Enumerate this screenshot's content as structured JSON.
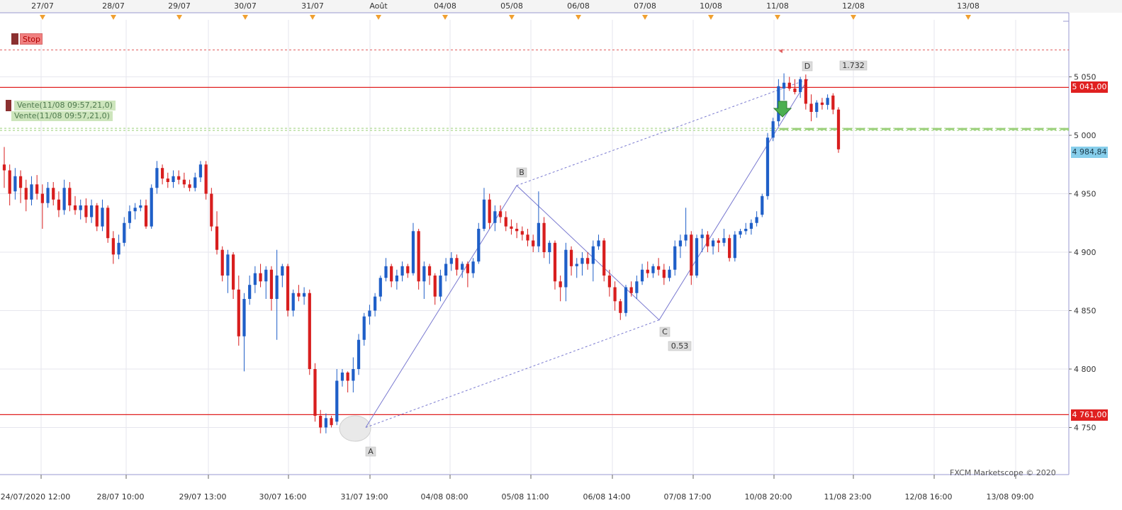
{
  "chart_data": {
    "type": "candlestick",
    "title": "",
    "watermark": "FXCM Marketscope © 2020",
    "top_date_labels": [
      "27/07",
      "28/07",
      "29/07",
      "30/07",
      "31/07",
      "Août",
      "04/08",
      "05/08",
      "06/08",
      "07/08",
      "10/08",
      "11/08",
      "12/08",
      "13/08"
    ],
    "bottom_time_labels": [
      "24/07/2020 12:00",
      "28/07 10:00",
      "29/07 13:00",
      "30/07 16:00",
      "31/07 19:00",
      "04/08 08:00",
      "05/08 11:00",
      "06/08 14:00",
      "07/08 17:00",
      "10/08 20:00",
      "11/08 23:00",
      "12/08 16:00",
      "13/08 09:00"
    ],
    "y_axis": {
      "ticks": [
        "4 750",
        "4 800",
        "4 850",
        "4 900",
        "4 950",
        "5 000",
        "5 050"
      ],
      "range": [
        4700,
        5100
      ]
    },
    "levels": {
      "resistance": {
        "value": 5041.0,
        "label": "5 041,00",
        "color": "#e02020"
      },
      "support": {
        "value": 4761.0,
        "label": "4 761,00",
        "color": "#e02020"
      },
      "current_price": {
        "value": 4984.84,
        "label": "4 984,84",
        "color": "#87ceeb"
      },
      "stop": {
        "value": 5073,
        "label": "Stop",
        "color": "#e06060"
      },
      "entry": {
        "value": 5006,
        "color": "#9ad07a"
      }
    },
    "orders": [
      "Vente(11/08 09:57,21,0)",
      "Vente(11/08 09:57,21,0)"
    ],
    "pattern": {
      "points": [
        {
          "label": "A",
          "x": "31/07 15:00",
          "y": 4750
        },
        {
          "label": "B",
          "x": "05/08 10:00",
          "y": 4957
        },
        {
          "label": "C",
          "x": "07/08 11:00",
          "y": 4842
        },
        {
          "label": "D",
          "x": "11/08 10:00",
          "y": 5048
        }
      ],
      "ratios": [
        "0.53",
        "1.732"
      ]
    },
    "bullish_color": "#1f5fc8",
    "bearish_color": "#d81e1e",
    "candles": [
      {
        "o": 4975,
        "h": 4990,
        "l": 4955,
        "c": 4970
      },
      {
        "o": 4970,
        "h": 4975,
        "l": 4940,
        "c": 4950
      },
      {
        "o": 4952,
        "h": 4972,
        "l": 4945,
        "c": 4965
      },
      {
        "o": 4965,
        "h": 4970,
        "l": 4942,
        "c": 4955
      },
      {
        "o": 4955,
        "h": 4962,
        "l": 4935,
        "c": 4945
      },
      {
        "o": 4945,
        "h": 4965,
        "l": 4940,
        "c": 4958
      },
      {
        "o": 4958,
        "h": 4966,
        "l": 4945,
        "c": 4950
      },
      {
        "o": 4950,
        "h": 4958,
        "l": 4920,
        "c": 4942
      },
      {
        "o": 4942,
        "h": 4960,
        "l": 4938,
        "c": 4955
      },
      {
        "o": 4955,
        "h": 4960,
        "l": 4940,
        "c": 4945
      },
      {
        "o": 4945,
        "h": 4952,
        "l": 4930,
        "c": 4936
      },
      {
        "o": 4936,
        "h": 4962,
        "l": 4932,
        "c": 4955
      },
      {
        "o": 4955,
        "h": 4960,
        "l": 4935,
        "c": 4940
      },
      {
        "o": 4940,
        "h": 4948,
        "l": 4932,
        "c": 4936
      },
      {
        "o": 4936,
        "h": 4945,
        "l": 4928,
        "c": 4940
      },
      {
        "o": 4940,
        "h": 4946,
        "l": 4925,
        "c": 4930
      },
      {
        "o": 4930,
        "h": 4945,
        "l": 4925,
        "c": 4940
      },
      {
        "o": 4940,
        "h": 4942,
        "l": 4918,
        "c": 4922
      },
      {
        "o": 4922,
        "h": 4945,
        "l": 4918,
        "c": 4938
      },
      {
        "o": 4938,
        "h": 4940,
        "l": 4908,
        "c": 4912
      },
      {
        "o": 4912,
        "h": 4918,
        "l": 4890,
        "c": 4898
      },
      {
        "o": 4898,
        "h": 4915,
        "l": 4894,
        "c": 4908
      },
      {
        "o": 4908,
        "h": 4930,
        "l": 4905,
        "c": 4925
      },
      {
        "o": 4925,
        "h": 4940,
        "l": 4920,
        "c": 4935
      },
      {
        "o": 4935,
        "h": 4942,
        "l": 4928,
        "c": 4938
      },
      {
        "o": 4938,
        "h": 4945,
        "l": 4935,
        "c": 4940
      },
      {
        "o": 4940,
        "h": 4945,
        "l": 4920,
        "c": 4922
      },
      {
        "o": 4922,
        "h": 4958,
        "l": 4920,
        "c": 4955
      },
      {
        "o": 4955,
        "h": 4978,
        "l": 4950,
        "c": 4972
      },
      {
        "o": 4972,
        "h": 4975,
        "l": 4958,
        "c": 4963
      },
      {
        "o": 4963,
        "h": 4968,
        "l": 4955,
        "c": 4960
      },
      {
        "o": 4960,
        "h": 4970,
        "l": 4955,
        "c": 4965
      },
      {
        "o": 4965,
        "h": 4970,
        "l": 4958,
        "c": 4962
      },
      {
        "o": 4962,
        "h": 4968,
        "l": 4955,
        "c": 4958
      },
      {
        "o": 4958,
        "h": 4962,
        "l": 4952,
        "c": 4955
      },
      {
        "o": 4955,
        "h": 4968,
        "l": 4952,
        "c": 4964
      },
      {
        "o": 4964,
        "h": 4978,
        "l": 4960,
        "c": 4975
      },
      {
        "o": 4975,
        "h": 4978,
        "l": 4945,
        "c": 4950
      },
      {
        "o": 4950,
        "h": 4955,
        "l": 4918,
        "c": 4922
      },
      {
        "o": 4922,
        "h": 4935,
        "l": 4898,
        "c": 4902
      },
      {
        "o": 4902,
        "h": 4905,
        "l": 4875,
        "c": 4880
      },
      {
        "o": 4880,
        "h": 4902,
        "l": 4865,
        "c": 4898
      },
      {
        "o": 4898,
        "h": 4900,
        "l": 4860,
        "c": 4868
      },
      {
        "o": 4868,
        "h": 4880,
        "l": 4820,
        "c": 4828
      },
      {
        "o": 4828,
        "h": 4865,
        "l": 4798,
        "c": 4860
      },
      {
        "o": 4860,
        "h": 4880,
        "l": 4855,
        "c": 4872
      },
      {
        "o": 4872,
        "h": 4888,
        "l": 4865,
        "c": 4882
      },
      {
        "o": 4882,
        "h": 4890,
        "l": 4870,
        "c": 4875
      },
      {
        "o": 4875,
        "h": 4888,
        "l": 4860,
        "c": 4885
      },
      {
        "o": 4885,
        "h": 4888,
        "l": 4850,
        "c": 4860
      },
      {
        "o": 4860,
        "h": 4902,
        "l": 4825,
        "c": 4880
      },
      {
        "o": 4880,
        "h": 4890,
        "l": 4870,
        "c": 4888
      },
      {
        "o": 4888,
        "h": 4890,
        "l": 4845,
        "c": 4850
      },
      {
        "o": 4850,
        "h": 4868,
        "l": 4845,
        "c": 4865
      },
      {
        "o": 4865,
        "h": 4872,
        "l": 4858,
        "c": 4862
      },
      {
        "o": 4862,
        "h": 4870,
        "l": 4855,
        "c": 4865
      },
      {
        "o": 4865,
        "h": 4868,
        "l": 4795,
        "c": 4800
      },
      {
        "o": 4800,
        "h": 4805,
        "l": 4755,
        "c": 4760
      },
      {
        "o": 4760,
        "h": 4765,
        "l": 4745,
        "c": 4750
      },
      {
        "o": 4750,
        "h": 4762,
        "l": 4745,
        "c": 4758
      },
      {
        "o": 4758,
        "h": 4760,
        "l": 4750,
        "c": 4752
      },
      {
        "o": 4755,
        "h": 4800,
        "l": 4752,
        "c": 4790
      },
      {
        "o": 4790,
        "h": 4800,
        "l": 4785,
        "c": 4797
      },
      {
        "o": 4797,
        "h": 4798,
        "l": 4780,
        "c": 4790
      },
      {
        "o": 4790,
        "h": 4810,
        "l": 4780,
        "c": 4800
      },
      {
        "o": 4800,
        "h": 4830,
        "l": 4795,
        "c": 4825
      },
      {
        "o": 4825,
        "h": 4848,
        "l": 4820,
        "c": 4845
      },
      {
        "o": 4845,
        "h": 4855,
        "l": 4838,
        "c": 4850
      },
      {
        "o": 4850,
        "h": 4865,
        "l": 4845,
        "c": 4862
      },
      {
        "o": 4862,
        "h": 4880,
        "l": 4858,
        "c": 4878
      },
      {
        "o": 4878,
        "h": 4895,
        "l": 4875,
        "c": 4888
      },
      {
        "o": 4888,
        "h": 4890,
        "l": 4870,
        "c": 4875
      },
      {
        "o": 4875,
        "h": 4885,
        "l": 4868,
        "c": 4880
      },
      {
        "o": 4880,
        "h": 4892,
        "l": 4875,
        "c": 4888
      },
      {
        "o": 4888,
        "h": 4890,
        "l": 4878,
        "c": 4882
      },
      {
        "o": 4882,
        "h": 4925,
        "l": 4880,
        "c": 4918
      },
      {
        "o": 4918,
        "h": 4920,
        "l": 4868,
        "c": 4875
      },
      {
        "o": 4875,
        "h": 4892,
        "l": 4860,
        "c": 4888
      },
      {
        "o": 4888,
        "h": 4890,
        "l": 4872,
        "c": 4880
      },
      {
        "o": 4880,
        "h": 4882,
        "l": 4855,
        "c": 4862
      },
      {
        "o": 4862,
        "h": 4885,
        "l": 4858,
        "c": 4880
      },
      {
        "o": 4880,
        "h": 4895,
        "l": 4875,
        "c": 4890
      },
      {
        "o": 4890,
        "h": 4900,
        "l": 4884,
        "c": 4895
      },
      {
        "o": 4895,
        "h": 4898,
        "l": 4880,
        "c": 4885
      },
      {
        "o": 4885,
        "h": 4892,
        "l": 4878,
        "c": 4890
      },
      {
        "o": 4890,
        "h": 4892,
        "l": 4870,
        "c": 4882
      },
      {
        "o": 4882,
        "h": 4895,
        "l": 4878,
        "c": 4892
      },
      {
        "o": 4892,
        "h": 4925,
        "l": 4890,
        "c": 4920
      },
      {
        "o": 4920,
        "h": 4955,
        "l": 4918,
        "c": 4945
      },
      {
        "o": 4945,
        "h": 4950,
        "l": 4920,
        "c": 4925
      },
      {
        "o": 4925,
        "h": 4940,
        "l": 4918,
        "c": 4935
      },
      {
        "o": 4935,
        "h": 4940,
        "l": 4925,
        "c": 4930
      },
      {
        "o": 4930,
        "h": 4935,
        "l": 4918,
        "c": 4922
      },
      {
        "o": 4922,
        "h": 4928,
        "l": 4915,
        "c": 4920
      },
      {
        "o": 4920,
        "h": 4925,
        "l": 4912,
        "c": 4918
      },
      {
        "o": 4918,
        "h": 4922,
        "l": 4910,
        "c": 4915
      },
      {
        "o": 4915,
        "h": 4920,
        "l": 4905,
        "c": 4910
      },
      {
        "o": 4910,
        "h": 4915,
        "l": 4900,
        "c": 4905
      },
      {
        "o": 4905,
        "h": 4952,
        "l": 4900,
        "c": 4925
      },
      {
        "o": 4925,
        "h": 4930,
        "l": 4895,
        "c": 4900
      },
      {
        "o": 4900,
        "h": 4910,
        "l": 4890,
        "c": 4908
      },
      {
        "o": 4908,
        "h": 4910,
        "l": 4868,
        "c": 4875
      },
      {
        "o": 4875,
        "h": 4880,
        "l": 4858,
        "c": 4870
      },
      {
        "o": 4870,
        "h": 4908,
        "l": 4858,
        "c": 4902
      },
      {
        "o": 4902,
        "h": 4905,
        "l": 4880,
        "c": 4888
      },
      {
        "o": 4888,
        "h": 4895,
        "l": 4878,
        "c": 4890
      },
      {
        "o": 4890,
        "h": 4900,
        "l": 4880,
        "c": 4895
      },
      {
        "o": 4895,
        "h": 4900,
        "l": 4885,
        "c": 4890
      },
      {
        "o": 4890,
        "h": 4910,
        "l": 4875,
        "c": 4905
      },
      {
        "o": 4905,
        "h": 4915,
        "l": 4902,
        "c": 4910
      },
      {
        "o": 4910,
        "h": 4912,
        "l": 4875,
        "c": 4880
      },
      {
        "o": 4880,
        "h": 4885,
        "l": 4862,
        "c": 4870
      },
      {
        "o": 4870,
        "h": 4875,
        "l": 4850,
        "c": 4858
      },
      {
        "o": 4858,
        "h": 4860,
        "l": 4842,
        "c": 4848
      },
      {
        "o": 4848,
        "h": 4872,
        "l": 4845,
        "c": 4870
      },
      {
        "o": 4870,
        "h": 4875,
        "l": 4862,
        "c": 4865
      },
      {
        "o": 4865,
        "h": 4880,
        "l": 4860,
        "c": 4875
      },
      {
        "o": 4875,
        "h": 4890,
        "l": 4872,
        "c": 4885
      },
      {
        "o": 4885,
        "h": 4892,
        "l": 4878,
        "c": 4882
      },
      {
        "o": 4882,
        "h": 4890,
        "l": 4878,
        "c": 4888
      },
      {
        "o": 4888,
        "h": 4895,
        "l": 4880,
        "c": 4885
      },
      {
        "o": 4885,
        "h": 4890,
        "l": 4872,
        "c": 4878
      },
      {
        "o": 4878,
        "h": 4888,
        "l": 4875,
        "c": 4885
      },
      {
        "o": 4885,
        "h": 4910,
        "l": 4880,
        "c": 4905
      },
      {
        "o": 4905,
        "h": 4915,
        "l": 4895,
        "c": 4910
      },
      {
        "o": 4910,
        "h": 4938,
        "l": 4905,
        "c": 4915
      },
      {
        "o": 4915,
        "h": 4918,
        "l": 4872,
        "c": 4880
      },
      {
        "o": 4880,
        "h": 4915,
        "l": 4878,
        "c": 4912
      },
      {
        "o": 4912,
        "h": 4920,
        "l": 4900,
        "c": 4915
      },
      {
        "o": 4915,
        "h": 4918,
        "l": 4900,
        "c": 4905
      },
      {
        "o": 4905,
        "h": 4912,
        "l": 4898,
        "c": 4910
      },
      {
        "o": 4910,
        "h": 4912,
        "l": 4900,
        "c": 4908
      },
      {
        "o": 4908,
        "h": 4920,
        "l": 4905,
        "c": 4912
      },
      {
        "o": 4912,
        "h": 4915,
        "l": 4892,
        "c": 4895
      },
      {
        "o": 4895,
        "h": 4918,
        "l": 4892,
        "c": 4915
      },
      {
        "o": 4915,
        "h": 4920,
        "l": 4912,
        "c": 4918
      },
      {
        "o": 4918,
        "h": 4925,
        "l": 4915,
        "c": 4920
      },
      {
        "o": 4920,
        "h": 4928,
        "l": 4915,
        "c": 4925
      },
      {
        "o": 4925,
        "h": 4935,
        "l": 4922,
        "c": 4930
      },
      {
        "o": 4932,
        "h": 4950,
        "l": 4930,
        "c": 4948
      },
      {
        "o": 4948,
        "h": 5002,
        "l": 4945,
        "c": 4998
      },
      {
        "o": 4998,
        "h": 5015,
        "l": 4995,
        "c": 5012
      },
      {
        "o": 5012,
        "h": 5048,
        "l": 5008,
        "c": 5042
      },
      {
        "o": 5040,
        "h": 5053,
        "l": 5030,
        "c": 5045
      },
      {
        "o": 5045,
        "h": 5050,
        "l": 5038,
        "c": 5040
      },
      {
        "o": 5040,
        "h": 5048,
        "l": 5035,
        "c": 5037
      },
      {
        "o": 5037,
        "h": 5050,
        "l": 5032,
        "c": 5048
      },
      {
        "o": 5048,
        "h": 5052,
        "l": 5022,
        "c": 5027
      },
      {
        "o": 5027,
        "h": 5035,
        "l": 5012,
        "c": 5020
      },
      {
        "o": 5020,
        "h": 5030,
        "l": 5015,
        "c": 5028
      },
      {
        "o": 5028,
        "h": 5032,
        "l": 5022,
        "c": 5026
      },
      {
        "o": 5026,
        "h": 5035,
        "l": 5022,
        "c": 5032
      },
      {
        "o": 5034,
        "h": 5036,
        "l": 5018,
        "c": 5022
      },
      {
        "o": 5022,
        "h": 5024,
        "l": 4985,
        "c": 4988
      }
    ]
  }
}
